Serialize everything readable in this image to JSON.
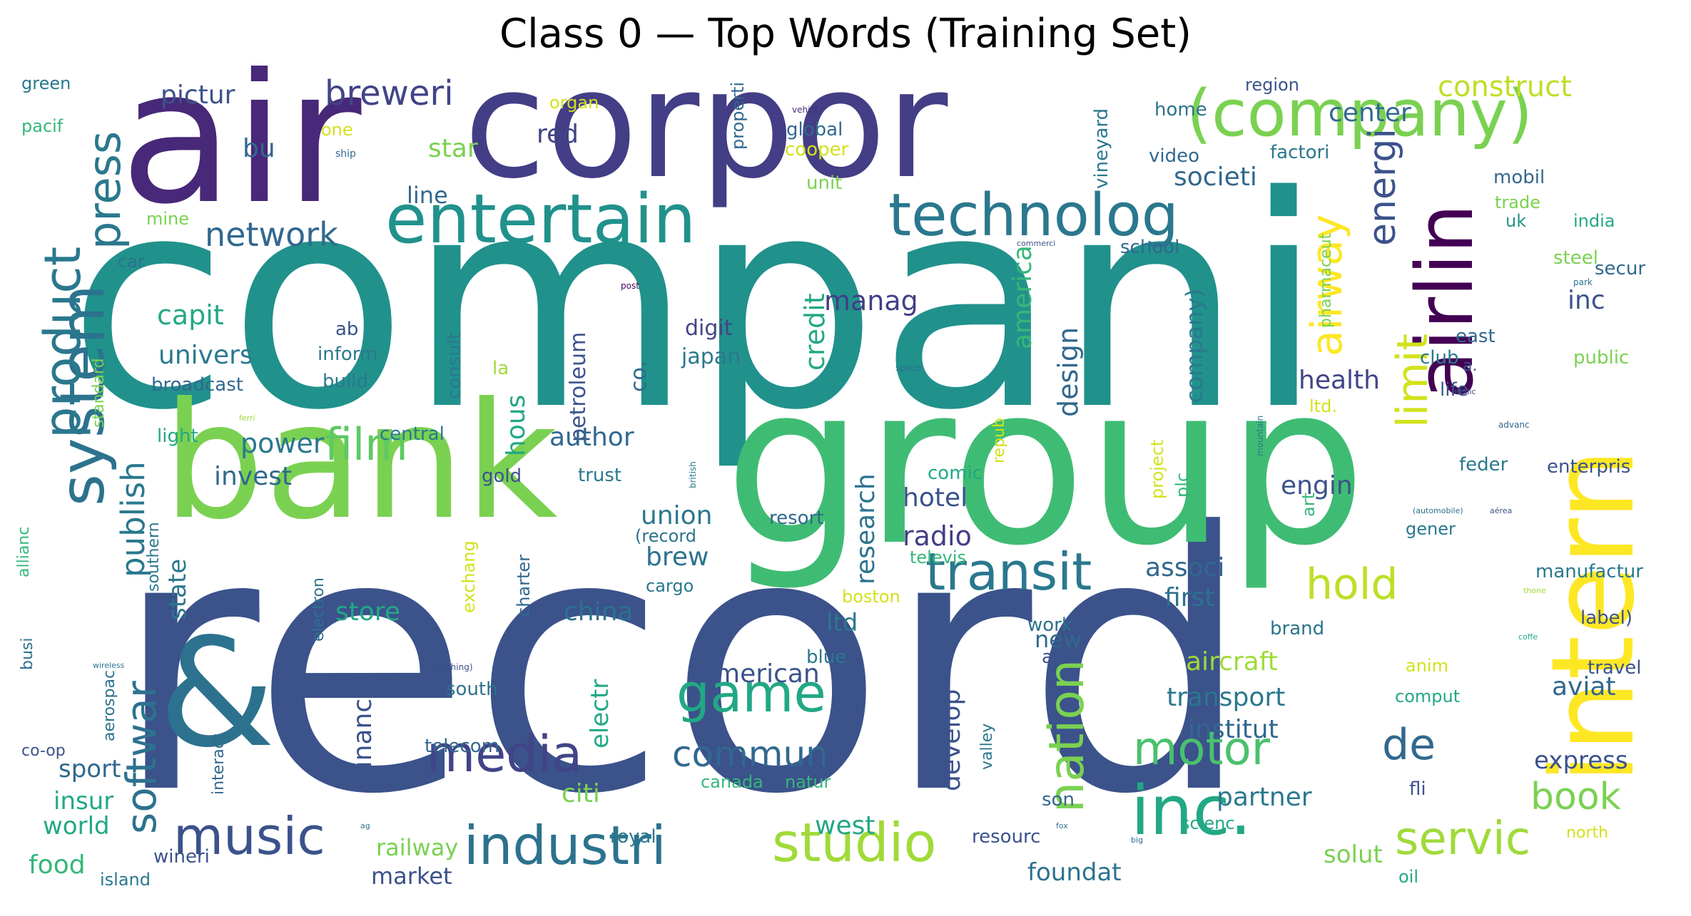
{
  "chart_data": {
    "type": "wordcloud",
    "title": "Class 0 — Top Words (Training Set)",
    "words": [
      {
        "text": "compani",
        "color": "#21918c"
      },
      {
        "text": "record",
        "color": "#3b528b"
      },
      {
        "text": "corpor",
        "color": "#433e85"
      },
      {
        "text": "group",
        "color": "#3fbc73"
      },
      {
        "text": "air",
        "color": "#482878"
      },
      {
        "text": "bank",
        "color": "#7ad151"
      },
      {
        "text": "&",
        "color": "#2c728e"
      },
      {
        "text": "intern",
        "color": "#fde725"
      },
      {
        "text": "(company)",
        "color": "#7ad151"
      },
      {
        "text": "entertain",
        "color": "#21918c"
      },
      {
        "text": "technolog",
        "color": "#2a788e"
      },
      {
        "text": "airlin",
        "color": "#440154"
      },
      {
        "text": "inc.",
        "color": "#22a884"
      },
      {
        "text": "system",
        "color": "#2c728e"
      },
      {
        "text": "product",
        "color": "#2a788e"
      },
      {
        "text": "studio",
        "color": "#a0da39"
      },
      {
        "text": "industri",
        "color": "#2c728e"
      },
      {
        "text": "music",
        "color": "#3b528b"
      },
      {
        "text": "media",
        "color": "#414487"
      },
      {
        "text": "transit",
        "color": "#2a788e"
      },
      {
        "text": "game",
        "color": "#22a884"
      },
      {
        "text": "nation",
        "color": "#7ad151"
      },
      {
        "text": "servic",
        "color": "#a0da39"
      },
      {
        "text": "motor",
        "color": "#4ac16d"
      },
      {
        "text": "film",
        "color": "#5ec962"
      },
      {
        "text": "softwar",
        "color": "#2c728e"
      },
      {
        "text": "press",
        "color": "#2a788e"
      },
      {
        "text": "hold",
        "color": "#bddf26"
      },
      {
        "text": "de",
        "color": "#31688e"
      },
      {
        "text": "airway",
        "color": "#fde725"
      },
      {
        "text": "limit",
        "color": "#d2e21b"
      },
      {
        "text": "energi",
        "color": "#3b528b"
      },
      {
        "text": "commun",
        "color": "#31688e"
      },
      {
        "text": "book",
        "color": "#7ad151"
      },
      {
        "text": "publish",
        "color": "#2a788e"
      },
      {
        "text": "network",
        "color": "#31688e"
      },
      {
        "text": "breweri",
        "color": "#414487"
      },
      {
        "text": "construct",
        "color": "#bddf26"
      },
      {
        "text": "center",
        "color": "#31688e"
      },
      {
        "text": "pictur",
        "color": "#3b528b"
      },
      {
        "text": "societi",
        "color": "#31688e"
      },
      {
        "text": "red",
        "color": "#414487"
      },
      {
        "text": "star",
        "color": "#7ad151"
      },
      {
        "text": "bu",
        "color": "#31688e"
      },
      {
        "text": "line",
        "color": "#31688e"
      },
      {
        "text": "capit",
        "color": "#22a884"
      },
      {
        "text": "univers",
        "color": "#2a788e"
      },
      {
        "text": "broadcast",
        "color": "#31688e"
      },
      {
        "text": "manag",
        "color": "#433e85"
      },
      {
        "text": "credit",
        "color": "#22a884"
      },
      {
        "text": "design",
        "color": "#31688e"
      },
      {
        "text": "health",
        "color": "#414487"
      },
      {
        "text": "inc",
        "color": "#3b528b"
      },
      {
        "text": "company)",
        "color": "#2a788e"
      },
      {
        "text": "america",
        "color": "#35b779"
      },
      {
        "text": "digit",
        "color": "#414487"
      },
      {
        "text": "japan",
        "color": "#2a788e"
      },
      {
        "text": "petroleum",
        "color": "#3b528b"
      },
      {
        "text": "author",
        "color": "#31688e"
      },
      {
        "text": "hous",
        "color": "#22a884"
      },
      {
        "text": "power",
        "color": "#2a788e"
      },
      {
        "text": "invest",
        "color": "#31688e"
      },
      {
        "text": "hotel",
        "color": "#3b528b"
      },
      {
        "text": "radio",
        "color": "#433e85"
      },
      {
        "text": "research",
        "color": "#2c728e"
      },
      {
        "text": "union",
        "color": "#2a788e"
      },
      {
        "text": "brew",
        "color": "#2c728e"
      },
      {
        "text": "associ",
        "color": "#31688e"
      },
      {
        "text": "first",
        "color": "#2c728e"
      },
      {
        "text": "engin",
        "color": "#3b528b"
      },
      {
        "text": "state",
        "color": "#2a788e"
      },
      {
        "text": "store",
        "color": "#22a884"
      },
      {
        "text": "china",
        "color": "#2c728e"
      },
      {
        "text": "ltd",
        "color": "#2a788e"
      },
      {
        "text": "american",
        "color": "#3b528b"
      },
      {
        "text": "aircraft",
        "color": "#a0da39"
      },
      {
        "text": "transport",
        "color": "#2a788e"
      },
      {
        "text": "institut",
        "color": "#31688e"
      },
      {
        "text": "partner",
        "color": "#2a788e"
      },
      {
        "text": "aviat",
        "color": "#31688e"
      },
      {
        "text": "express",
        "color": "#3b528b"
      },
      {
        "text": "financi",
        "color": "#3b528b"
      },
      {
        "text": "electr",
        "color": "#22a884"
      },
      {
        "text": "develop",
        "color": "#3b528b"
      },
      {
        "text": "citi",
        "color": "#7ad151"
      },
      {
        "text": "west",
        "color": "#22a884"
      },
      {
        "text": "world",
        "color": "#22a884"
      },
      {
        "text": "sport",
        "color": "#31688e"
      },
      {
        "text": "insur",
        "color": "#22a884"
      },
      {
        "text": "food",
        "color": "#35b779"
      },
      {
        "text": "railway",
        "color": "#7ad151"
      },
      {
        "text": "market",
        "color": "#3b528b"
      },
      {
        "text": "foundat",
        "color": "#2c728e"
      },
      {
        "text": "solut",
        "color": "#7ad151"
      },
      {
        "text": "green",
        "color": "#2a788e"
      },
      {
        "text": "pacif",
        "color": "#35b779"
      },
      {
        "text": "organ",
        "color": "#d2e21b"
      },
      {
        "text": "one",
        "color": "#d2e21b"
      },
      {
        "text": "ship",
        "color": "#31688e"
      },
      {
        "text": "properti",
        "color": "#31688e"
      },
      {
        "text": "vehicl",
        "color": "#482878"
      },
      {
        "text": "global",
        "color": "#31688e"
      },
      {
        "text": "cooper",
        "color": "#d2e21b"
      },
      {
        "text": "unit",
        "color": "#7ad151"
      },
      {
        "text": "region",
        "color": "#3b528b"
      },
      {
        "text": "home",
        "color": "#2c728e"
      },
      {
        "text": "video",
        "color": "#31688e"
      },
      {
        "text": "factori",
        "color": "#2a788e"
      },
      {
        "text": "vineyard",
        "color": "#2a788e"
      },
      {
        "text": "mobil",
        "color": "#31688e"
      },
      {
        "text": "trade",
        "color": "#7ad151"
      },
      {
        "text": "uk",
        "color": "#21918c"
      },
      {
        "text": "india",
        "color": "#22a884"
      },
      {
        "text": "school",
        "color": "#31688e"
      },
      {
        "text": "steel",
        "color": "#7ad151"
      },
      {
        "text": "pharmaceut",
        "color": "#7ad151"
      },
      {
        "text": "mine",
        "color": "#7ad151"
      },
      {
        "text": "car",
        "color": "#2c728e"
      },
      {
        "text": "commerci",
        "color": "#3b528b"
      },
      {
        "text": "post",
        "color": "#440154"
      },
      {
        "text": "secur",
        "color": "#31688e"
      },
      {
        "text": "park",
        "color": "#2c728e"
      },
      {
        "text": "east",
        "color": "#31688e"
      },
      {
        "text": "a.",
        "color": "#3b528b"
      },
      {
        "text": "ab",
        "color": "#3b528b"
      },
      {
        "text": "inform",
        "color": "#2a788e"
      },
      {
        "text": "build",
        "color": "#2a788e"
      },
      {
        "text": "consult",
        "color": "#2a788e"
      },
      {
        "text": "la",
        "color": "#a0da39"
      },
      {
        "text": "co.",
        "color": "#31688e"
      },
      {
        "text": "club",
        "color": "#2a788e"
      },
      {
        "text": "life",
        "color": "#3b528b"
      },
      {
        "text": "public",
        "color": "#7ad151"
      },
      {
        "text": "standard",
        "color": "#7ad151"
      },
      {
        "text": "space",
        "color": "#2c728e"
      },
      {
        "text": "medic",
        "color": "#3b528b"
      },
      {
        "text": "ferri",
        "color": "#a0da39"
      },
      {
        "text": "ltd.",
        "color": "#d2e21b"
      },
      {
        "text": "light",
        "color": "#22a884"
      },
      {
        "text": "central",
        "color": "#2a788e"
      },
      {
        "text": "gold",
        "color": "#3b528b"
      },
      {
        "text": "trust",
        "color": "#2a788e"
      },
      {
        "text": "comic",
        "color": "#22a884"
      },
      {
        "text": "repub",
        "color": "#d2e21b"
      },
      {
        "text": "project",
        "color": "#d2e21b"
      },
      {
        "text": "plc",
        "color": "#35b779"
      },
      {
        "text": "mountain",
        "color": "#2a788e"
      },
      {
        "text": "british",
        "color": "#2a788e"
      },
      {
        "text": "advanc",
        "color": "#31688e"
      },
      {
        "text": "feder",
        "color": "#2a788e"
      },
      {
        "text": "enterpris",
        "color": "#3b528b"
      },
      {
        "text": "art",
        "color": "#35b779"
      },
      {
        "text": "(automobile)",
        "color": "#2c728e"
      },
      {
        "text": "aérea",
        "color": "#3b528b"
      },
      {
        "text": "gener",
        "color": "#2a788e"
      },
      {
        "text": "(record",
        "color": "#2c728e"
      },
      {
        "text": "resort",
        "color": "#31688e"
      },
      {
        "text": "exchang",
        "color": "#d2e21b"
      },
      {
        "text": "charter",
        "color": "#31688e"
      },
      {
        "text": "cargo",
        "color": "#2a788e"
      },
      {
        "text": "televis",
        "color": "#35b779"
      },
      {
        "text": "boston",
        "color": "#d2e21b"
      },
      {
        "text": "electron",
        "color": "#2c728e"
      },
      {
        "text": "southern",
        "color": "#2a788e"
      },
      {
        "text": "allianc",
        "color": "#35b779"
      },
      {
        "text": "manufactur",
        "color": "#2a788e"
      },
      {
        "text": "thone",
        "color": "#a0da39"
      },
      {
        "text": "label)",
        "color": "#3b528b"
      },
      {
        "text": "coffe",
        "color": "#22a884"
      },
      {
        "text": "brand",
        "color": "#2c728e"
      },
      {
        "text": "work",
        "color": "#2c728e"
      },
      {
        "text": "area",
        "color": "#3b528b"
      },
      {
        "text": "new",
        "color": "#31688e"
      },
      {
        "text": "blue",
        "color": "#2a788e"
      },
      {
        "text": "busi",
        "color": "#2c728e"
      },
      {
        "text": "aerospac",
        "color": "#2c728e"
      },
      {
        "text": "wireless",
        "color": "#2c728e"
      },
      {
        "text": "(clothing)",
        "color": "#3b528b"
      },
      {
        "text": "south",
        "color": "#2c728e"
      },
      {
        "text": "telecom",
        "color": "#31688e"
      },
      {
        "text": "canada",
        "color": "#35b779"
      },
      {
        "text": "natur",
        "color": "#35b779"
      },
      {
        "text": "valley",
        "color": "#2a788e"
      },
      {
        "text": "anim",
        "color": "#d2e21b"
      },
      {
        "text": "comput",
        "color": "#22a884"
      },
      {
        "text": "travel",
        "color": "#3b528b"
      },
      {
        "text": "co-op",
        "color": "#3b528b"
      },
      {
        "text": "interact",
        "color": "#31688e"
      },
      {
        "text": "fli",
        "color": "#3b528b"
      },
      {
        "text": "son",
        "color": "#31688e"
      },
      {
        "text": "fox",
        "color": "#2c728e"
      },
      {
        "text": "ag",
        "color": "#2a788e"
      },
      {
        "text": "wineri",
        "color": "#3b528b"
      },
      {
        "text": "royal",
        "color": "#2a788e"
      },
      {
        "text": "resourc",
        "color": "#3b528b"
      },
      {
        "text": "scienc",
        "color": "#22a884"
      },
      {
        "text": "big",
        "color": "#31688e"
      },
      {
        "text": "north",
        "color": "#d2e21b"
      },
      {
        "text": "island",
        "color": "#2a788e"
      },
      {
        "text": "oil",
        "color": "#22a884"
      }
    ]
  }
}
